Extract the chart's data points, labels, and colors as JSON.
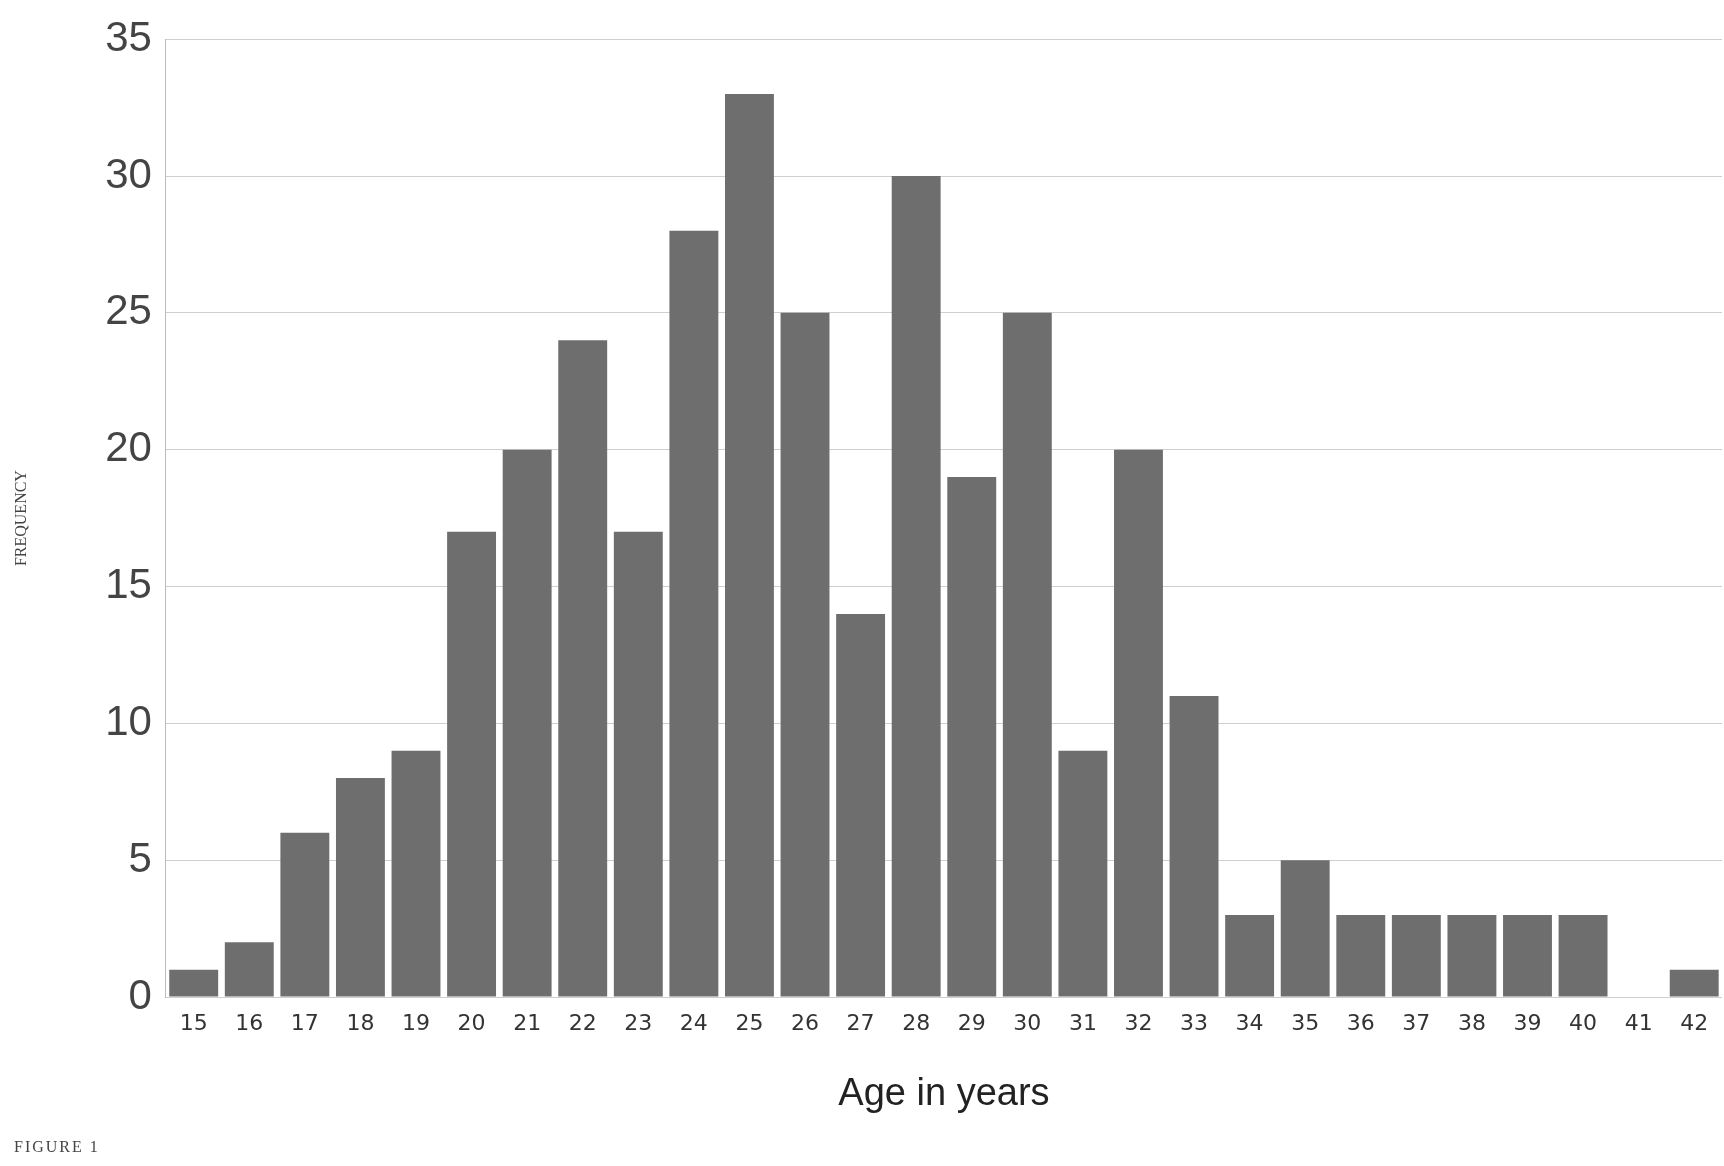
{
  "chart_data": {
    "type": "bar",
    "xlabel": "Age in years",
    "ylabel": "FREQUENCY",
    "categories": [
      "15",
      "16",
      "17",
      "18",
      "19",
      "20",
      "21",
      "22",
      "23",
      "24",
      "25",
      "26",
      "27",
      "28",
      "29",
      "30",
      "31",
      "32",
      "33",
      "34",
      "35",
      "36",
      "37",
      "38",
      "39",
      "40",
      "41",
      "42"
    ],
    "values": [
      1,
      2,
      6,
      8,
      9,
      17,
      20,
      24,
      17,
      28,
      33,
      25,
      14,
      30,
      19,
      25,
      9,
      20,
      11,
      3,
      5,
      3,
      3,
      3,
      3,
      3,
      0,
      1
    ],
    "color": "#6e6e6e",
    "ylim": [
      0,
      35
    ],
    "yticks": [
      0,
      5,
      10,
      15,
      20,
      25,
      30,
      35
    ],
    "grid": "y",
    "legend": false,
    "annotations": [
      "FIGURE 1"
    ]
  }
}
